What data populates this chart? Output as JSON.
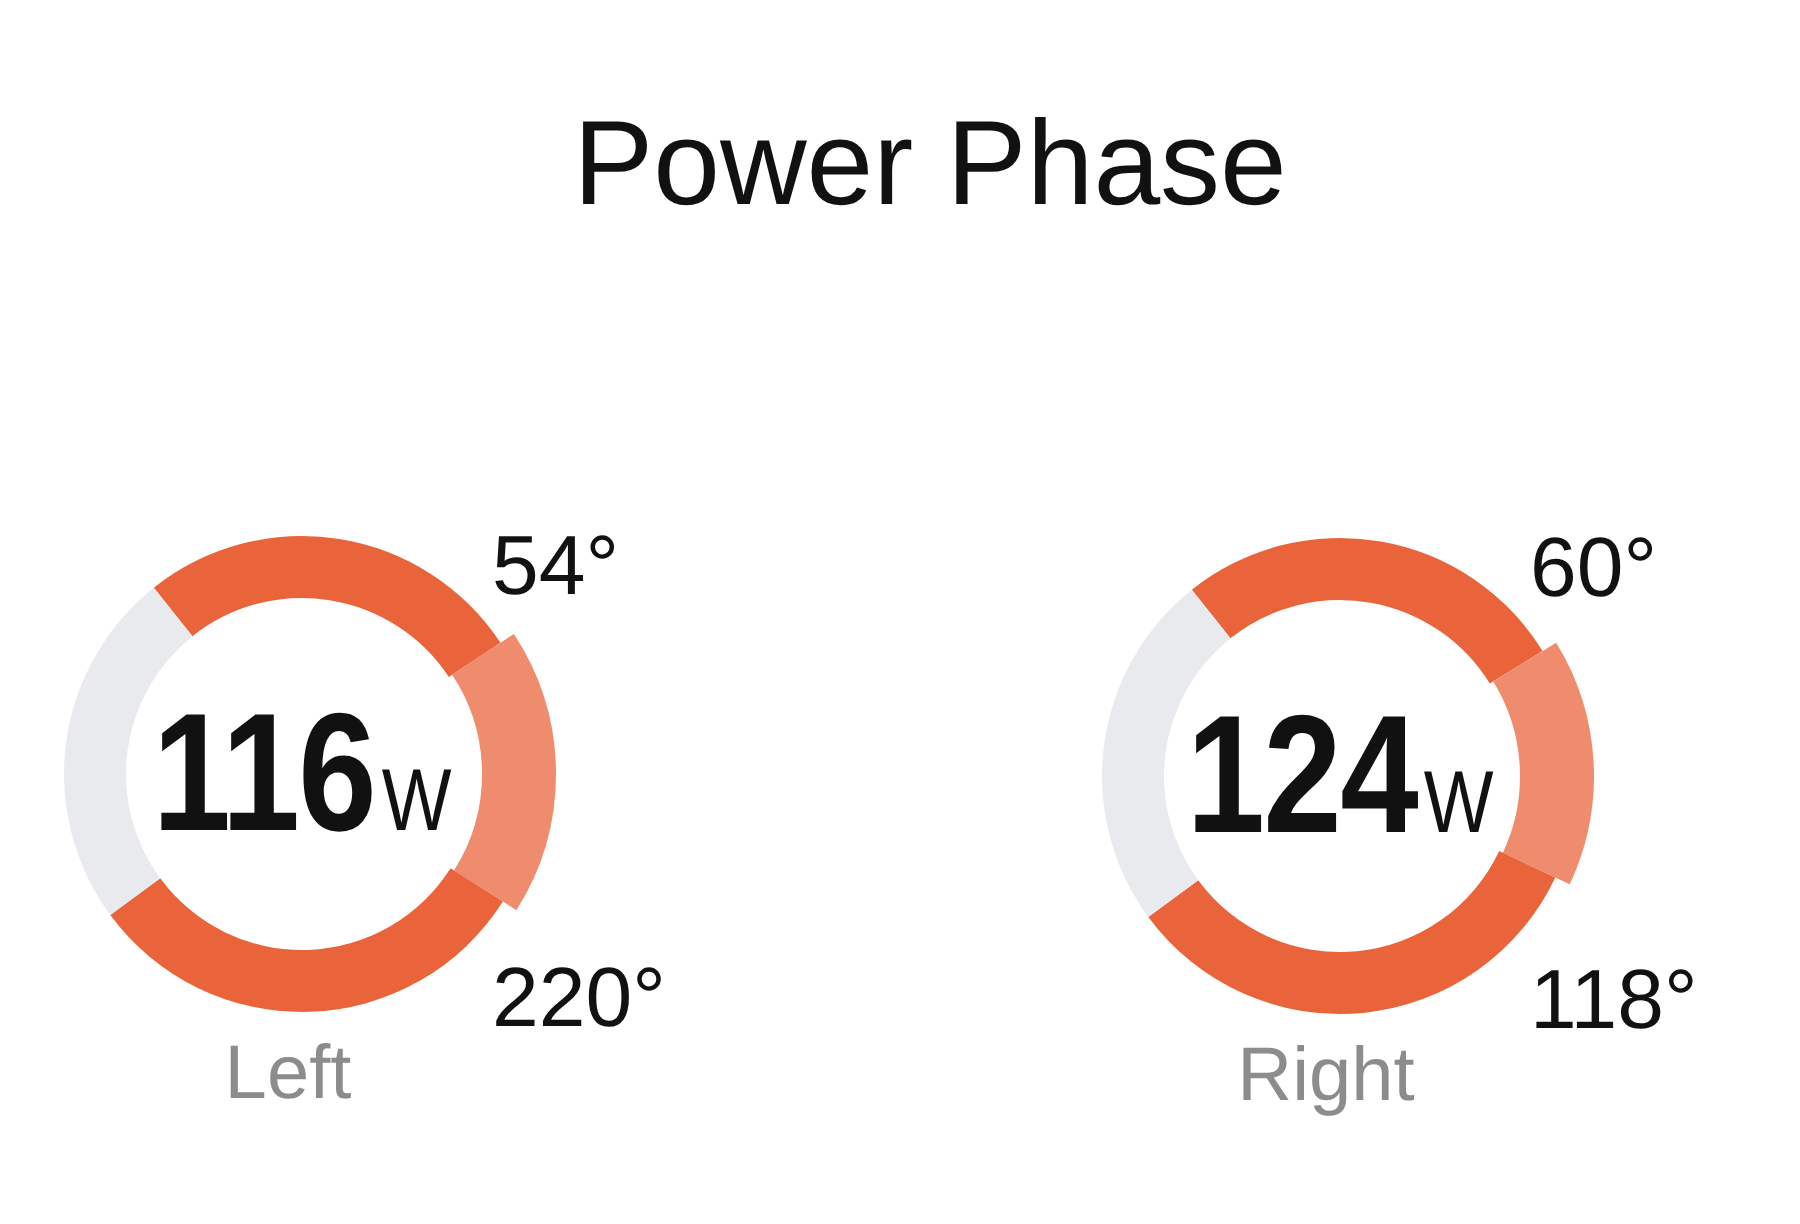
{
  "chart_data": [
    {
      "type": "donut",
      "title": "Power Phase",
      "xlabel": "Left",
      "categories": [
        null,
        null,
        null,
        null
      ],
      "values": [
        26.4,
        18.3,
        30.9,
        24.4
      ],
      "colors": [
        "#e9643a",
        "#ef8c6e",
        "#e9643a",
        "#e9eaee"
      ],
      "annotations": [
        "116W",
        "54°",
        "220°"
      ]
    },
    {
      "type": "donut",
      "xlabel": "Right",
      "categories": [
        null,
        null,
        null,
        null
      ],
      "values": [
        26.9,
        15.8,
        32.9,
        24.4
      ],
      "colors": [
        "#e9643a",
        "#ef8c6e",
        "#e9643a",
        "#e9eaee"
      ],
      "annotations": [
        "124W",
        "60°",
        "118°"
      ]
    }
  ]
}
